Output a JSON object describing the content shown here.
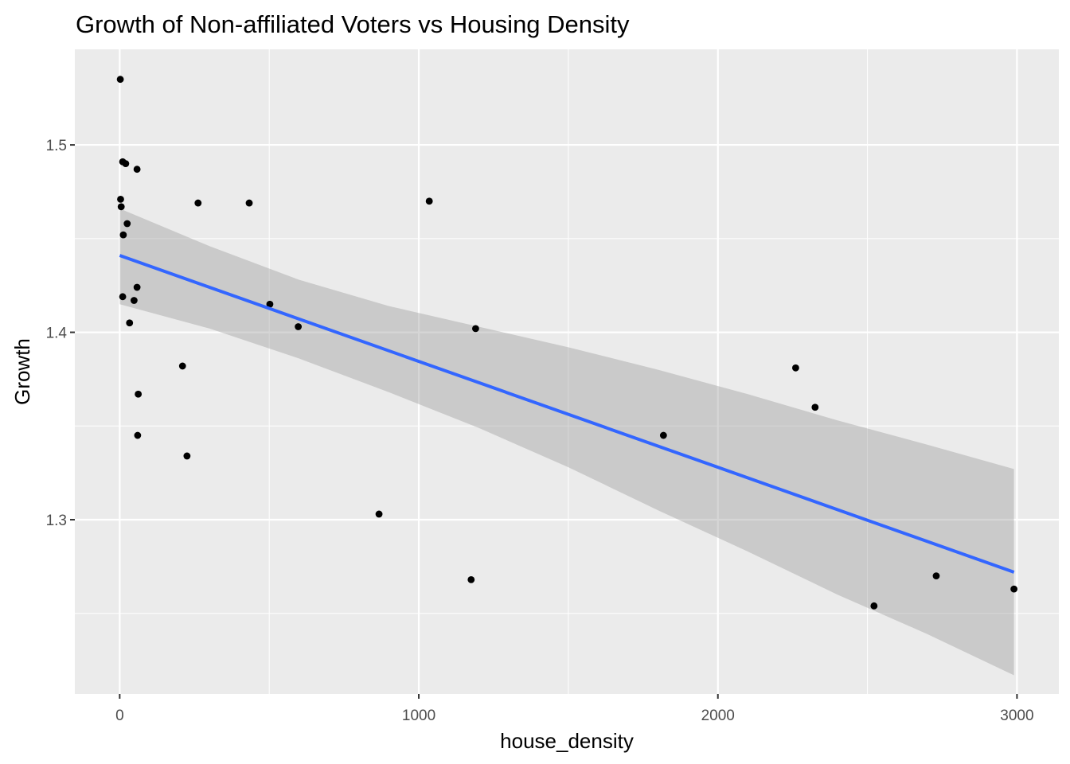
{
  "chart_data": {
    "type": "scatter",
    "title": "Growth of Non-affiliated Voters vs Housing Density",
    "xlabel": "house_density",
    "ylabel": "Growth",
    "xlim": [
      -150,
      3140
    ],
    "ylim": [
      1.207,
      1.551
    ],
    "x_ticks": [
      0,
      1000,
      2000,
      3000
    ],
    "x_tick_labels": [
      "0",
      "1000",
      "2000",
      "3000"
    ],
    "x_minor": [
      500,
      1500,
      2500
    ],
    "y_ticks": [
      1.3,
      1.4,
      1.5
    ],
    "y_tick_labels": [
      "1.3",
      "1.4",
      "1.5"
    ],
    "y_minor": [
      1.25,
      1.35,
      1.45
    ],
    "grid": true,
    "background": "#ebebeb",
    "grid_color": "#ffffff",
    "point_color": "#000000",
    "fit_color": "#3366ff",
    "band_color": "#999999",
    "points": [
      {
        "x": 2,
        "y": 1.535
      },
      {
        "x": 10,
        "y": 1.491
      },
      {
        "x": 20,
        "y": 1.49
      },
      {
        "x": 58,
        "y": 1.487
      },
      {
        "x": 3,
        "y": 1.471
      },
      {
        "x": 5,
        "y": 1.467
      },
      {
        "x": 262,
        "y": 1.469
      },
      {
        "x": 433,
        "y": 1.469
      },
      {
        "x": 1035,
        "y": 1.47
      },
      {
        "x": 25,
        "y": 1.458
      },
      {
        "x": 12,
        "y": 1.452
      },
      {
        "x": 58,
        "y": 1.424
      },
      {
        "x": 10,
        "y": 1.419
      },
      {
        "x": 48,
        "y": 1.417
      },
      {
        "x": 502,
        "y": 1.415
      },
      {
        "x": 33,
        "y": 1.405
      },
      {
        "x": 597,
        "y": 1.403
      },
      {
        "x": 1190,
        "y": 1.402
      },
      {
        "x": 210,
        "y": 1.382
      },
      {
        "x": 2260,
        "y": 1.381
      },
      {
        "x": 62,
        "y": 1.367
      },
      {
        "x": 2325,
        "y": 1.36
      },
      {
        "x": 60,
        "y": 1.345
      },
      {
        "x": 1818,
        "y": 1.345
      },
      {
        "x": 225,
        "y": 1.334
      },
      {
        "x": 867,
        "y": 1.303
      },
      {
        "x": 1175,
        "y": 1.268
      },
      {
        "x": 2730,
        "y": 1.27
      },
      {
        "x": 2990,
        "y": 1.263
      },
      {
        "x": 2522,
        "y": 1.254
      }
    ],
    "fit": {
      "x": [
        0,
        2990
      ],
      "y": [
        1.441,
        1.272
      ]
    },
    "band": {
      "x": [
        0,
        300,
        600,
        900,
        1200,
        1500,
        1800,
        2100,
        2400,
        2700,
        2990
      ],
      "upper": [
        1.466,
        1.446,
        1.428,
        1.414,
        1.403,
        1.392,
        1.38,
        1.367,
        1.353,
        1.34,
        1.327
      ],
      "lower": [
        1.415,
        1.402,
        1.386,
        1.368,
        1.349,
        1.328,
        1.305,
        1.283,
        1.26,
        1.239,
        1.217
      ]
    }
  }
}
